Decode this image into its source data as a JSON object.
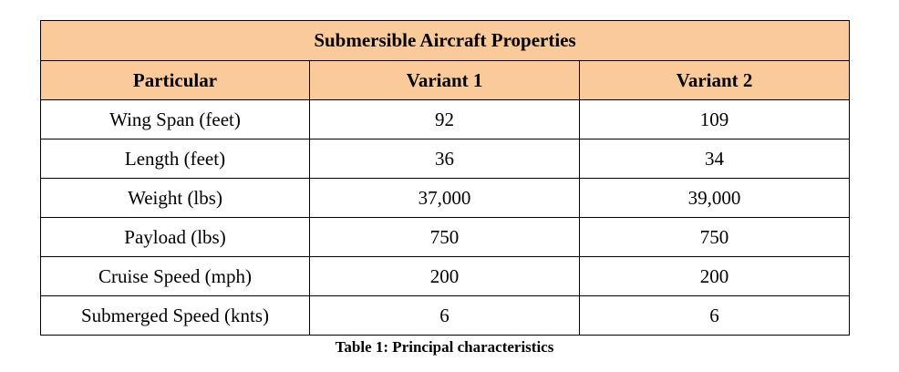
{
  "table": {
    "title": "Submersible Aircraft Properties",
    "header_fill": "#FBCA9B",
    "columns": [
      "Particular",
      "Variant 1",
      "Variant 2"
    ],
    "rows": [
      [
        "Wing Span (feet)",
        "92",
        "109"
      ],
      [
        "Length (feet)",
        "36",
        "34"
      ],
      [
        "Weight (lbs)",
        "37,000",
        "39,000"
      ],
      [
        "Payload (lbs)",
        "750",
        "750"
      ],
      [
        "Cruise Speed (mph)",
        "200",
        "200"
      ],
      [
        "Submerged Speed (knts)",
        "6",
        "6"
      ]
    ]
  },
  "caption": "Table 1: Principal characteristics"
}
